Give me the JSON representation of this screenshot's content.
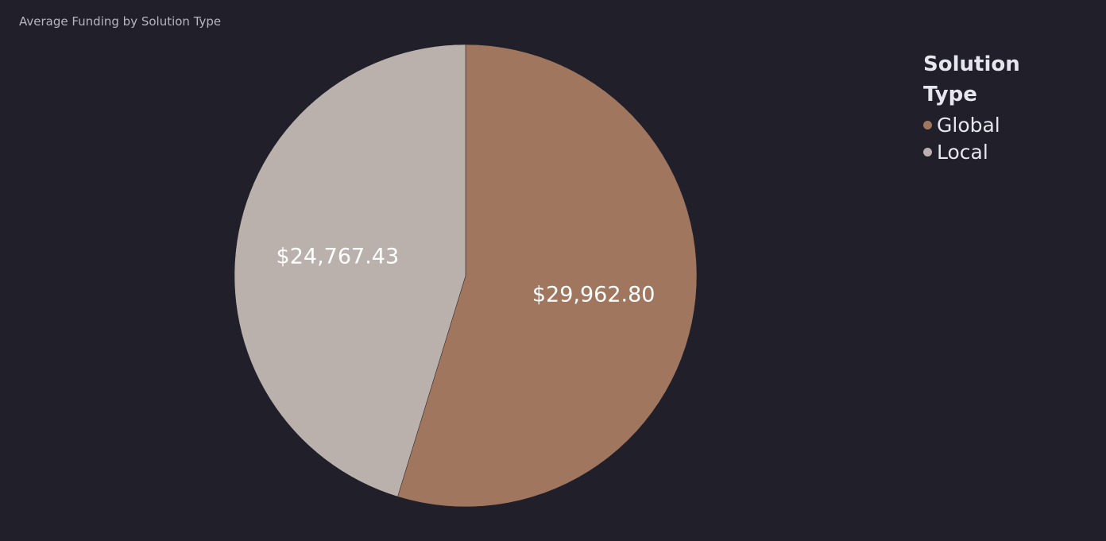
{
  "chart_data": {
    "type": "pie",
    "title": "Average Funding by Solution Type",
    "legend_title": "Solution Type",
    "legend_position": "top-right",
    "slices": [
      {
        "label": "Global",
        "value": 29962.8,
        "display": "$29,962.80",
        "color": "#a0775e"
      },
      {
        "label": "Local",
        "value": 24767.43,
        "display": "$24,767.43",
        "color": "#bab1ad"
      }
    ]
  },
  "colors": {
    "background": "#201f2a",
    "title_text": "#b7b5c0",
    "legend_text": "#e6e6ee",
    "slice_label_text": "#ffffff"
  }
}
